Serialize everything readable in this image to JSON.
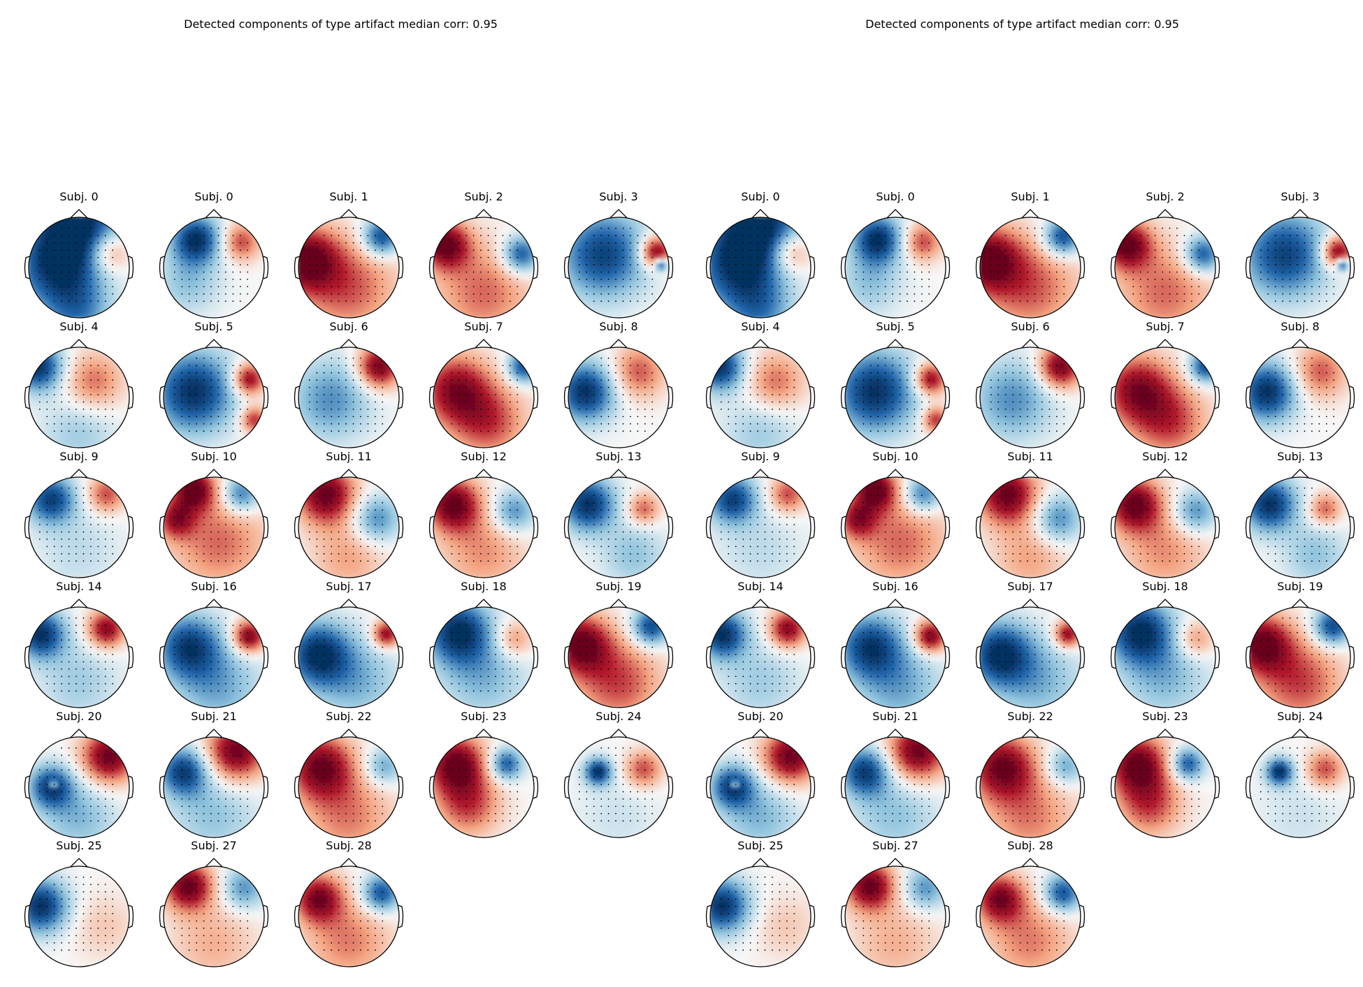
{
  "figure": {
    "panels": [
      {
        "title": "Detected components of type artifact median corr: 0.95",
        "subjects": [
          "Subj. 0",
          "Subj. 0",
          "Subj. 1",
          "Subj. 2",
          "Subj. 3",
          "Subj. 4",
          "Subj. 5",
          "Subj. 6",
          "Subj. 7",
          "Subj. 8",
          "Subj. 9",
          "Subj. 10",
          "Subj. 11",
          "Subj. 12",
          "Subj. 13",
          "Subj. 14",
          "Subj. 16",
          "Subj. 17",
          "Subj. 18",
          "Subj. 19",
          "Subj. 20",
          "Subj. 21",
          "Subj. 22",
          "Subj. 23",
          "Subj. 24",
          "Subj. 25",
          "Subj. 27",
          "Subj. 28"
        ]
      },
      {
        "title": "Detected components of type artifact median corr: 0.95",
        "subjects": [
          "Subj. 0",
          "Subj. 0",
          "Subj. 1",
          "Subj. 2",
          "Subj. 3",
          "Subj. 4",
          "Subj. 5",
          "Subj. 6",
          "Subj. 7",
          "Subj. 8",
          "Subj. 9",
          "Subj. 10",
          "Subj. 11",
          "Subj. 12",
          "Subj. 13",
          "Subj. 14",
          "Subj. 16",
          "Subj. 17",
          "Subj. 18",
          "Subj. 19",
          "Subj. 20",
          "Subj. 21",
          "Subj. 22",
          "Subj. 23",
          "Subj. 24",
          "Subj. 25",
          "Subj. 27",
          "Subj. 28"
        ]
      }
    ],
    "colormap": "RdBu_r",
    "colors": {
      "dark_red": "#67001f",
      "red": "#b2182b",
      "light_red": "#f4a582",
      "white": "#f7f7f7",
      "light_blue": "#92c5de",
      "blue": "#2166ac",
      "dark_blue": "#053061",
      "outline": "#000000"
    },
    "maps": [
      {
        "blobs": [
          [
            0.0,
            -0.9,
            0.8,
            -1.0
          ],
          [
            -0.45,
            0.0,
            0.8,
            -0.9
          ],
          [
            0.6,
            -0.3,
            0.4,
            0.6
          ],
          [
            0.0,
            0.9,
            0.6,
            -0.5
          ]
        ]
      },
      {
        "blobs": [
          [
            -0.35,
            -0.55,
            0.45,
            -1.0
          ],
          [
            0.55,
            -0.5,
            0.35,
            0.6
          ],
          [
            -0.5,
            0.3,
            0.6,
            -0.35
          ]
        ]
      },
      {
        "blobs": [
          [
            -0.85,
            -0.15,
            0.6,
            1.0
          ],
          [
            0.65,
            -0.6,
            0.35,
            -0.9
          ],
          [
            0.0,
            0.4,
            0.9,
            0.55
          ]
        ]
      },
      {
        "blobs": [
          [
            -0.75,
            -0.45,
            0.45,
            1.0
          ],
          [
            0.75,
            -0.25,
            0.35,
            -0.85
          ],
          [
            0.0,
            0.5,
            0.9,
            0.5
          ]
        ]
      },
      {
        "blobs": [
          [
            -0.3,
            -0.25,
            0.8,
            -0.9
          ],
          [
            0.75,
            -0.3,
            0.3,
            1.0
          ],
          [
            0.85,
            -0.05,
            0.12,
            -1.0
          ]
        ]
      },
      {
        "blobs": [
          [
            -0.8,
            -0.6,
            0.45,
            -1.0
          ],
          [
            0.3,
            -0.3,
            0.55,
            0.5
          ],
          [
            0.0,
            0.7,
            0.7,
            -0.3
          ]
        ]
      },
      {
        "blobs": [
          [
            -0.4,
            -0.1,
            0.75,
            -1.0
          ],
          [
            0.7,
            -0.35,
            0.3,
            0.9
          ],
          [
            0.8,
            0.45,
            0.25,
            0.7
          ]
        ]
      },
      {
        "blobs": [
          [
            0.6,
            -0.6,
            0.4,
            1.0
          ],
          [
            -0.35,
            0.05,
            0.75,
            -0.55
          ]
        ]
      },
      {
        "blobs": [
          [
            -0.55,
            -0.15,
            0.65,
            0.85
          ],
          [
            0.8,
            -0.6,
            0.3,
            -0.85
          ],
          [
            0.1,
            0.5,
            0.7,
            0.6
          ]
        ]
      },
      {
        "blobs": [
          [
            -0.65,
            -0.1,
            0.55,
            -1.0
          ],
          [
            0.4,
            -0.5,
            0.5,
            0.55
          ]
        ]
      },
      {
        "blobs": [
          [
            -0.55,
            -0.55,
            0.45,
            -0.9
          ],
          [
            0.55,
            -0.65,
            0.35,
            0.6
          ],
          [
            0.0,
            0.45,
            0.8,
            -0.2
          ]
        ]
      },
      {
        "blobs": [
          [
            -0.4,
            -0.75,
            0.4,
            1.0
          ],
          [
            -0.75,
            -0.15,
            0.35,
            0.7
          ],
          [
            0.55,
            -0.65,
            0.35,
            -0.7
          ],
          [
            0.1,
            0.3,
            0.9,
            0.5
          ]
        ]
      },
      {
        "blobs": [
          [
            -0.45,
            -0.65,
            0.55,
            1.0
          ],
          [
            0.55,
            -0.15,
            0.45,
            -0.6
          ],
          [
            0.0,
            0.6,
            0.7,
            0.35
          ]
        ]
      },
      {
        "blobs": [
          [
            -0.6,
            -0.45,
            0.5,
            1.0
          ],
          [
            0.6,
            -0.3,
            0.4,
            -0.6
          ],
          [
            0.0,
            0.5,
            0.8,
            0.4
          ]
        ]
      },
      {
        "blobs": [
          [
            -0.6,
            -0.45,
            0.5,
            -1.0
          ],
          [
            0.5,
            -0.35,
            0.3,
            0.55
          ],
          [
            0.3,
            0.55,
            0.6,
            -0.35
          ]
        ]
      },
      {
        "blobs": [
          [
            -0.75,
            -0.45,
            0.45,
            -1.0
          ],
          [
            0.55,
            -0.55,
            0.35,
            0.9
          ],
          [
            0.0,
            0.5,
            0.75,
            -0.3
          ]
        ]
      },
      {
        "blobs": [
          [
            -0.5,
            -0.2,
            0.6,
            -0.9
          ],
          [
            0.7,
            -0.4,
            0.3,
            1.0
          ],
          [
            0.1,
            0.6,
            0.8,
            -0.45
          ]
        ]
      },
      {
        "blobs": [
          [
            -0.6,
            -0.05,
            0.6,
            -1.0
          ],
          [
            0.75,
            -0.45,
            0.25,
            0.9
          ],
          [
            0.2,
            0.5,
            0.8,
            -0.4
          ]
        ]
      },
      {
        "blobs": [
          [
            -0.5,
            -0.5,
            0.6,
            -1.0
          ],
          [
            0.6,
            -0.35,
            0.35,
            0.45
          ],
          [
            0.0,
            0.4,
            0.8,
            -0.4
          ]
        ]
      },
      {
        "blobs": [
          [
            -0.75,
            -0.25,
            0.55,
            1.0
          ],
          [
            0.65,
            -0.6,
            0.35,
            -0.9
          ],
          [
            0.0,
            0.5,
            0.8,
            0.6
          ]
        ]
      },
      {
        "blobs": [
          [
            0.6,
            -0.6,
            0.5,
            1.0
          ],
          [
            -0.55,
            0.0,
            0.4,
            -0.9
          ],
          [
            -0.5,
            -0.05,
            0.08,
            0.7
          ],
          [
            0.0,
            0.6,
            0.7,
            -0.4
          ]
        ]
      },
      {
        "blobs": [
          [
            0.45,
            -0.7,
            0.55,
            1.0
          ],
          [
            -0.6,
            -0.3,
            0.45,
            -0.9
          ],
          [
            0.0,
            0.55,
            0.8,
            -0.35
          ]
        ]
      },
      {
        "blobs": [
          [
            -0.55,
            -0.4,
            0.6,
            0.95
          ],
          [
            0.7,
            -0.4,
            0.35,
            -0.5
          ],
          [
            0.0,
            0.6,
            0.85,
            0.45
          ]
        ]
      },
      {
        "blobs": [
          [
            -0.55,
            -0.45,
            0.55,
            1.0
          ],
          [
            0.45,
            -0.45,
            0.3,
            -0.8
          ],
          [
            -0.3,
            0.35,
            0.6,
            0.6
          ]
        ]
      },
      {
        "blobs": [
          [
            -0.4,
            -0.3,
            0.25,
            -1.0
          ],
          [
            0.5,
            -0.35,
            0.35,
            0.6
          ],
          [
            0.0,
            0.6,
            0.8,
            -0.15
          ]
        ]
      },
      {
        "blobs": [
          [
            -0.75,
            -0.2,
            0.5,
            -1.0
          ],
          [
            0.5,
            0.2,
            0.6,
            0.2
          ]
        ]
      },
      {
        "blobs": [
          [
            -0.5,
            -0.6,
            0.45,
            1.0
          ],
          [
            0.6,
            -0.55,
            0.4,
            -0.55
          ],
          [
            0.0,
            0.55,
            0.8,
            0.3
          ]
        ]
      },
      {
        "blobs": [
          [
            -0.6,
            -0.35,
            0.45,
            0.9
          ],
          [
            0.65,
            -0.45,
            0.35,
            -0.85
          ],
          [
            0.0,
            0.5,
            0.8,
            0.45
          ]
        ]
      }
    ]
  }
}
